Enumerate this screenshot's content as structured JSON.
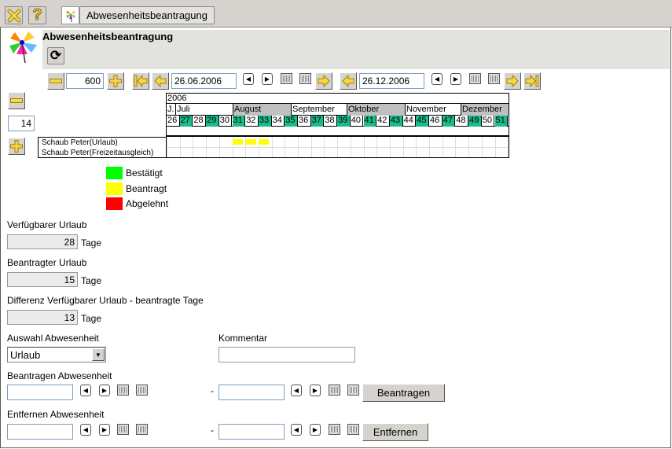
{
  "toolbar": {
    "close_icon": "close-x-icon",
    "help_icon": "question-icon",
    "tab_label": "Abwesenheitsbeantragung"
  },
  "header": {
    "title": "Abwesenheitsbeantragung",
    "refresh_icon": "refresh-icon"
  },
  "navigation": {
    "zoom_value": "600",
    "start_date": "26.06.2006",
    "end_date": "26.12.2006",
    "row_count": "14"
  },
  "chart": {
    "year": "2006",
    "months": [
      "J.",
      "Juli",
      "August",
      "September",
      "Oktober",
      "November",
      "Dezember"
    ],
    "month_shaded": [
      false,
      false,
      true,
      false,
      true,
      false,
      true
    ],
    "weeks": [
      "26",
      "27",
      "28",
      "29",
      "30",
      "31",
      "32",
      "33",
      "34",
      "35",
      "36",
      "37",
      "38",
      "39",
      "40",
      "41",
      "42",
      "43",
      "44",
      "45",
      "46",
      "47",
      "48",
      "49",
      "50",
      "51",
      "5"
    ],
    "highlight_weeks": [
      "27",
      "29",
      "31",
      "33",
      "35",
      "37",
      "39",
      "41",
      "43",
      "45",
      "47",
      "49",
      "51"
    ],
    "rows": [
      {
        "label": "Schaub Peter(Urlaub)",
        "requested_weeks": [
          "31",
          "32",
          "33"
        ]
      },
      {
        "label": "Schaub Peter(Freizeitausgleich)",
        "requested_weeks": []
      }
    ],
    "colors": {
      "week_highlight": "#1abc8c",
      "requested": "#ffff00",
      "month_shaded": "#c0c0c0"
    }
  },
  "legend": [
    {
      "label": "Bestätigt",
      "color": "#00ff00"
    },
    {
      "label": "Beantragt",
      "color": "#ffff00"
    },
    {
      "label": "Abgelehnt",
      "color": "#ff0000"
    }
  ],
  "vacation": {
    "available_label": "Verfügbarer Urlaub",
    "available_value": "28",
    "requested_label": "Beantragter Urlaub",
    "requested_value": "15",
    "diff_label": "Differenz Verfügbarer Urlaub - beantragte Tage",
    "diff_value": "13",
    "unit": "Tage"
  },
  "form": {
    "type_label": "Auswahl Abwesenheit",
    "type_value": "Urlaub",
    "comment_label": "Kommentar",
    "comment_value": "",
    "request_label": "Beantragen Abwesenheit",
    "request_button": "Beantragen",
    "remove_label": "Entfernen Abwesenheit",
    "remove_button": "Entfernen",
    "dash": "-"
  }
}
